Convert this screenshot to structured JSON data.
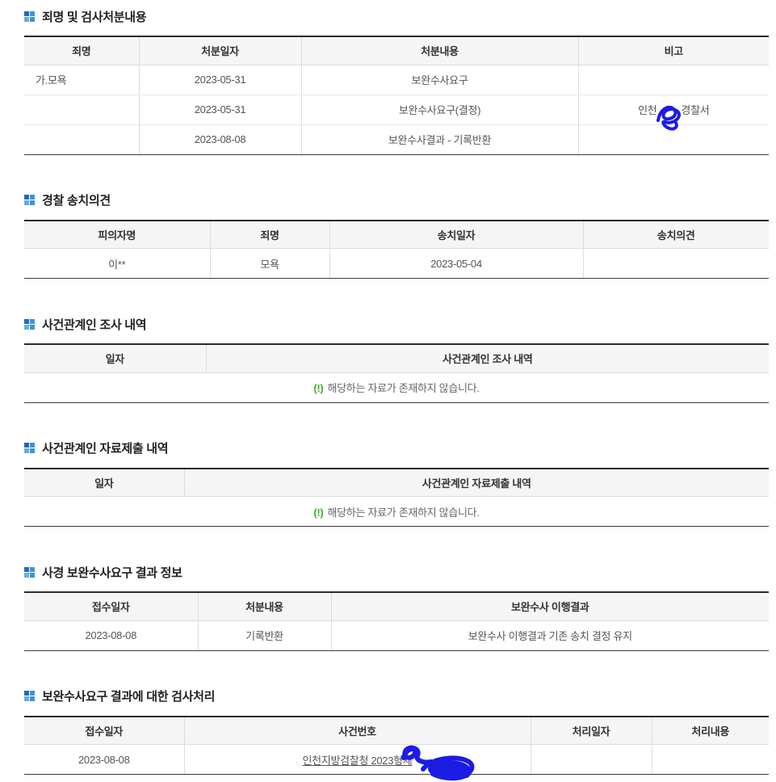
{
  "colors": {
    "scribble_blue": "#1c1ce4",
    "alert_green": "#3fae29",
    "icon": {
      "tl": "#1b6dbf",
      "tr": "#3e93d9",
      "bl": "#66ace4",
      "br": "#3e93d9"
    }
  },
  "empty_message": {
    "mark": "(!)",
    "text": "해당하는 자료가 존재하지 않습니다."
  },
  "sections": [
    {
      "name": "prosecutor-disposition",
      "title": "죄명 및 검사처분내용",
      "columns": [
        "죄명",
        "처분일자",
        "처분내용",
        "비고"
      ],
      "rows": [
        {
          "cells": [
            "가.모욕",
            "2023-05-31",
            "보완수사요구",
            ""
          ]
        },
        {
          "cells": [
            "",
            "2023-05-31",
            "보완수사요구(결정)",
            {
              "kind": "redacted",
              "prefix": "인천",
              "suffix": "경찰서"
            }
          ]
        },
        {
          "cells": [
            "",
            "2023-08-08",
            "보완수사결과 - 기록반환",
            ""
          ]
        }
      ]
    },
    {
      "name": "police-referral-opinion",
      "title": "경찰 송치의견",
      "columns": [
        "피의자명",
        "죄명",
        "송치일자",
        "송치의견"
      ],
      "rows": [
        {
          "cells": [
            "이**",
            "모욕",
            "2023-05-04",
            ""
          ]
        }
      ]
    },
    {
      "name": "related-person-investigation",
      "title": "사건관계인 조사 내역",
      "columns": [
        "일자",
        "사건관계인 조사 내역"
      ],
      "rows": [
        {
          "kind": "empty_message"
        }
      ]
    },
    {
      "name": "related-person-submission",
      "title": "사건관계인 자료제출 내역",
      "columns": [
        "일자",
        "사건관계인 자료제출 내역"
      ],
      "rows": [
        {
          "kind": "empty_message"
        }
      ]
    },
    {
      "name": "police-supplementary-result",
      "title": "사경 보완수사요구 결과 정보",
      "columns": [
        "접수일자",
        "처분내용",
        "보완수사 이행결과"
      ],
      "rows": [
        {
          "cells": [
            "2023-08-08",
            "기록반환",
            "보완수사 이행결과 기존 송치 결정 유지"
          ]
        }
      ]
    },
    {
      "name": "prosecutor-processing",
      "title": "보완수사요구 결과에 대한 검사처리",
      "columns": [
        "접수일자",
        "사건번호",
        "처리일자",
        "처리내용"
      ],
      "rows": [
        {
          "cells": [
            "2023-08-08",
            {
              "kind": "link_redacted",
              "text": "인천지방검찰청 2023형제"
            },
            "",
            ""
          ]
        }
      ]
    }
  ]
}
